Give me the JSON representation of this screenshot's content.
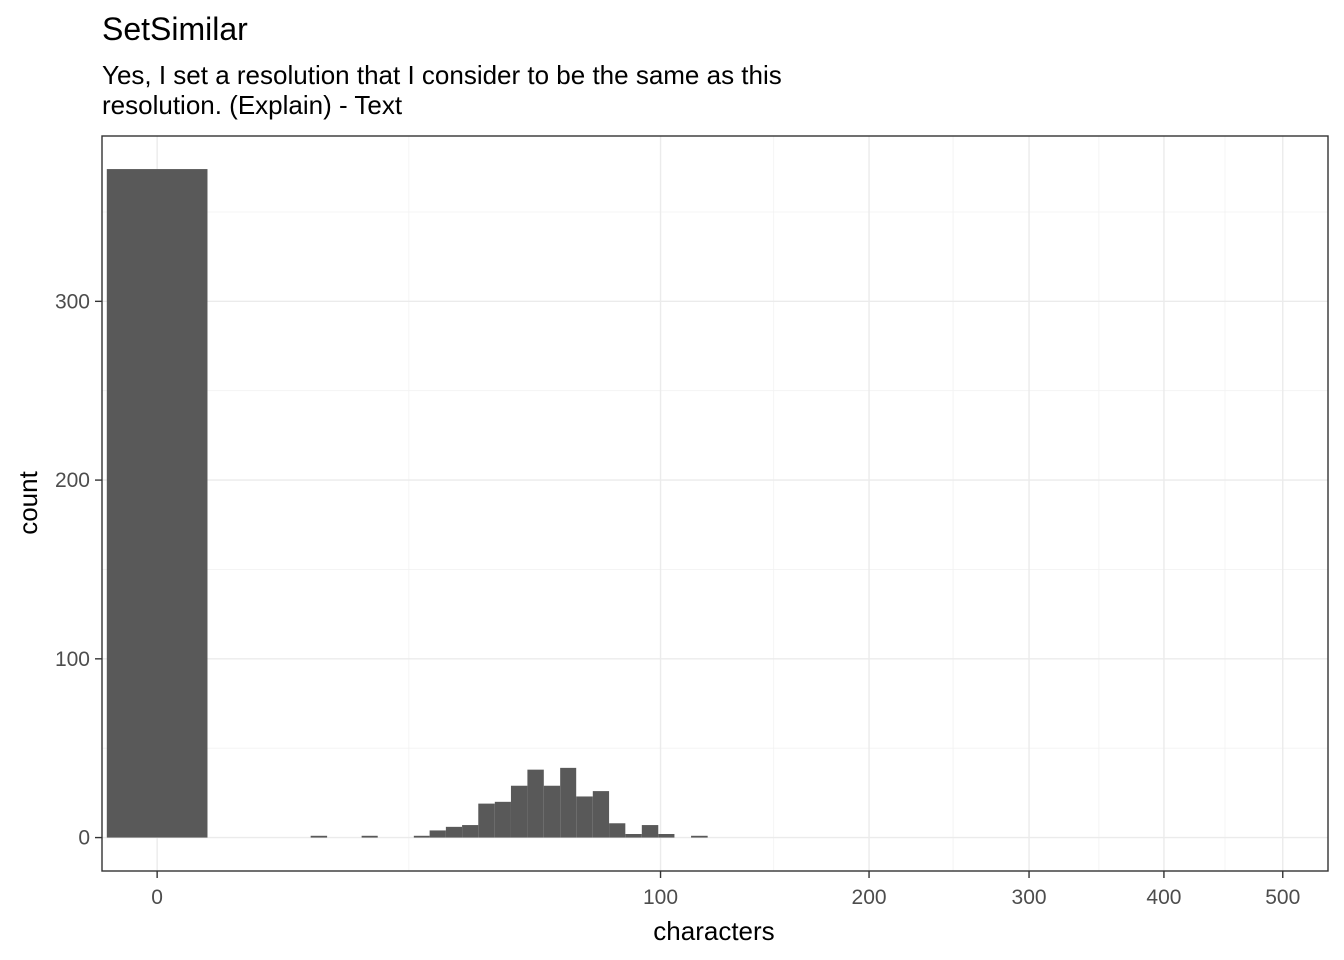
{
  "chart_data": {
    "type": "bar",
    "title": "SetSimilar",
    "subtitle_lines": [
      "Yes, I set a resolution that I consider to be the same as this",
      "resolution. (Explain) - Text"
    ],
    "xlabel": "characters",
    "ylabel": "count",
    "x_scale": "sqrt",
    "x_ticks": [
      0,
      100,
      200,
      300,
      400,
      500
    ],
    "x_tick_labels": [
      "0",
      "100",
      "200",
      "300",
      "400",
      "500"
    ],
    "x_minor_grid": [
      25,
      150,
      250,
      350,
      450
    ],
    "x_range": [
      -1.2,
      541
    ],
    "y_ticks": [
      0,
      100,
      200,
      300
    ],
    "y_tick_labels": [
      "0",
      "100",
      "200",
      "300"
    ],
    "y_minor_grid": [
      50,
      150,
      250,
      350
    ],
    "ylim": [
      -18.7,
      392.5
    ],
    "grid": true,
    "bars": [
      {
        "x0": -1.0,
        "x1": 1.0,
        "count": 374
      },
      {
        "x0": 9.3,
        "x1": 11.4,
        "count": 1
      },
      {
        "x0": 16.5,
        "x1": 19.2,
        "count": 1
      },
      {
        "x0": 26.0,
        "x1": 29.3,
        "count": 1
      },
      {
        "x0": 29.3,
        "x1": 32.9,
        "count": 4
      },
      {
        "x0": 32.9,
        "x1": 36.7,
        "count": 6
      },
      {
        "x0": 36.7,
        "x1": 40.7,
        "count": 7
      },
      {
        "x0": 40.7,
        "x1": 45.0,
        "count": 19
      },
      {
        "x0": 45.0,
        "x1": 49.4,
        "count": 20
      },
      {
        "x0": 49.4,
        "x1": 54.1,
        "count": 29
      },
      {
        "x0": 54.1,
        "x1": 59.0,
        "count": 38
      },
      {
        "x0": 59.0,
        "x1": 64.1,
        "count": 29
      },
      {
        "x0": 64.1,
        "x1": 69.3,
        "count": 39
      },
      {
        "x0": 69.3,
        "x1": 74.9,
        "count": 23
      },
      {
        "x0": 74.9,
        "x1": 80.6,
        "count": 26
      },
      {
        "x0": 80.6,
        "x1": 86.5,
        "count": 8
      },
      {
        "x0": 86.5,
        "x1": 92.7,
        "count": 2
      },
      {
        "x0": 92.7,
        "x1": 99.1,
        "count": 7
      },
      {
        "x0": 99.1,
        "x1": 105.6,
        "count": 2
      },
      {
        "x0": 112.5,
        "x1": 119.6,
        "count": 1
      }
    ]
  }
}
